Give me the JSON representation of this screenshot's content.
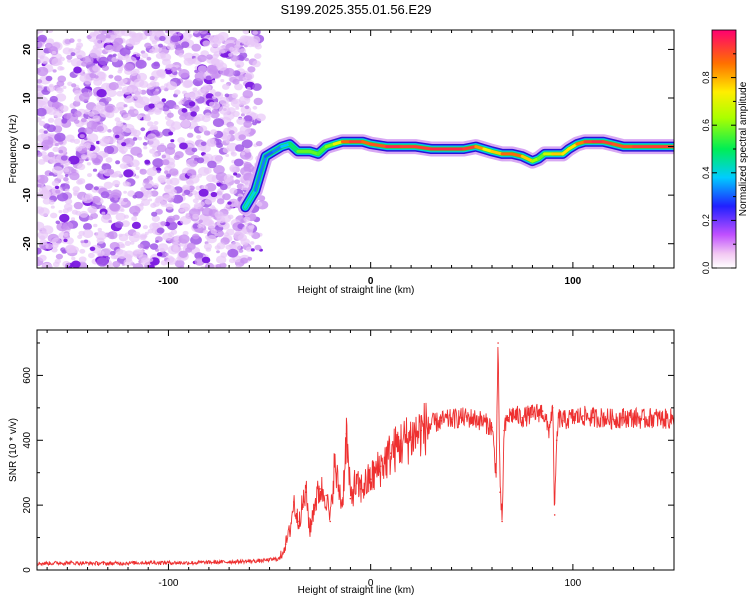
{
  "title": "S199.2025.355.01.56.E29",
  "colors": {
    "snr_line": "#ee3030",
    "axis": "#000000",
    "background": "#ffffff",
    "noise": "#9a40ee"
  },
  "chart_data": [
    {
      "type": "heatmap",
      "xlabel": "Height of straight line (km)",
      "ylabel": "Frequency (Hz)",
      "xlim": [
        -165,
        150
      ],
      "ylim": [
        -25,
        24
      ],
      "xticks": [
        "-100",
        "0",
        "100"
      ],
      "xtick_values": [
        -100,
        0,
        100
      ],
      "yticks": [
        "-20",
        "-10",
        "0",
        "10",
        "20"
      ],
      "ytick_values": [
        -20,
        -10,
        0,
        10,
        20
      ],
      "colorbar": {
        "label": "Normalized spectral amplitude",
        "ticks": [
          "0.0",
          "0.2",
          "0.4",
          "0.6",
          "0.8"
        ],
        "tick_values": [
          0.0,
          0.2,
          0.4,
          0.6,
          0.8
        ],
        "range": [
          0,
          1
        ]
      },
      "noise_region_x": [
        -165,
        -53
      ],
      "ridge": {
        "x": [
          -62,
          -57,
          -52,
          -48,
          -44,
          -40,
          -36,
          -30,
          -26,
          -22,
          -18,
          -14,
          -10,
          -4,
          0,
          8,
          15,
          22,
          30,
          40,
          46,
          52,
          56,
          60,
          65,
          70,
          75,
          80,
          83,
          86,
          90,
          95,
          98,
          102,
          106,
          110,
          115,
          120,
          125,
          130,
          140,
          150
        ],
        "freq": [
          -12.5,
          -9,
          -2,
          -1,
          0,
          0.5,
          -1,
          -1,
          -1.5,
          0,
          0.5,
          1,
          1,
          1,
          0.5,
          0,
          0,
          0,
          -0.5,
          -0.5,
          -0.5,
          0,
          -0.5,
          -1,
          -1.5,
          -1.5,
          -2,
          -3,
          -2.5,
          -1.5,
          -1.5,
          -1.5,
          -0.5,
          0.5,
          1,
          1,
          1,
          0.5,
          0,
          0,
          0,
          0
        ],
        "amplitude": [
          0.45,
          0.35,
          0.3,
          0.3,
          0.35,
          0.4,
          0.55,
          0.6,
          0.55,
          0.55,
          0.65,
          0.8,
          0.95,
          0.9,
          0.85,
          0.95,
          0.95,
          0.9,
          0.95,
          0.95,
          0.95,
          0.9,
          0.75,
          0.7,
          0.85,
          0.9,
          0.85,
          0.7,
          0.55,
          0.6,
          0.75,
          0.8,
          0.7,
          0.8,
          0.9,
          0.95,
          0.95,
          0.9,
          0.9,
          0.9,
          0.95,
          0.9
        ]
      }
    },
    {
      "type": "line",
      "xlabel": "Height of straight line (km)",
      "ylabel": "SNR (10 * v/v)",
      "xlim": [
        -165,
        150
      ],
      "ylim": [
        0,
        740
      ],
      "xticks": [
        "-100",
        "0",
        "100"
      ],
      "xtick_values": [
        -100,
        0,
        100
      ],
      "yticks": [
        "0",
        "200",
        "400",
        "600"
      ],
      "ytick_values": [
        0,
        200,
        400,
        600
      ],
      "series": [
        {
          "name": "SNR",
          "x": [
            -165,
            -150,
            -130,
            -110,
            -90,
            -70,
            -55,
            -45,
            -42,
            -40,
            -38,
            -36,
            -34,
            -32,
            -30,
            -28,
            -25,
            -22,
            -20,
            -18,
            -16,
            -14,
            -12,
            -10,
            -8,
            -5,
            0,
            5,
            10,
            15,
            20,
            25,
            30,
            35,
            40,
            45,
            50,
            55,
            60,
            62,
            63,
            64,
            65,
            66,
            68,
            70,
            75,
            80,
            85,
            88,
            90,
            91,
            92,
            93,
            95,
            100,
            105,
            110,
            115,
            120,
            125,
            130,
            135,
            140,
            145,
            150
          ],
          "y": [
            20,
            22,
            20,
            23,
            22,
            25,
            28,
            35,
            80,
            120,
            210,
            150,
            190,
            240,
            120,
            200,
            250,
            230,
            150,
            320,
            260,
            200,
            420,
            220,
            260,
            250,
            280,
            320,
            360,
            390,
            410,
            430,
            450,
            460,
            465,
            470,
            468,
            460,
            440,
            300,
            700,
            240,
            150,
            430,
            470,
            480,
            470,
            480,
            490,
            430,
            500,
            170,
            400,
            470,
            460,
            470,
            475,
            470,
            470,
            465,
            470,
            470,
            465,
            470,
            465,
            468
          ]
        }
      ]
    }
  ]
}
